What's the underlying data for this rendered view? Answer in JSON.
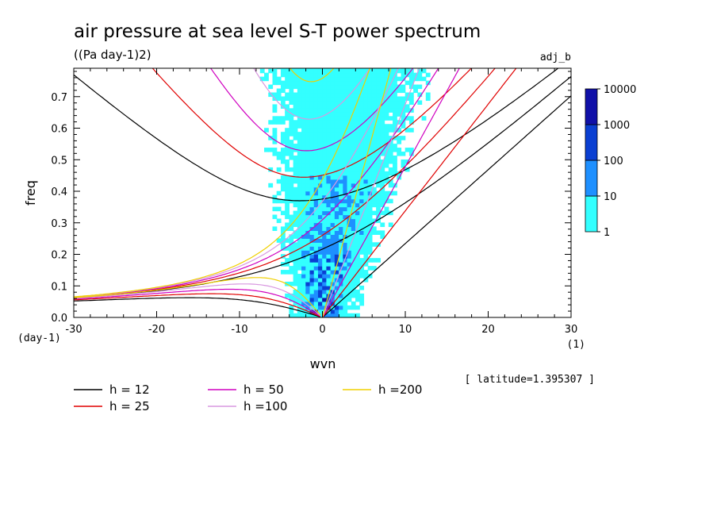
{
  "chart_data": {
    "type": "heatmap",
    "title": "air pressure at sea level S-T power spectrum",
    "subtitle": "((Pa day-1)2)",
    "tag": "adj_b",
    "xlabel": "wvn",
    "ylabel": "freq",
    "x_unit": "(1)",
    "y_unit": "(day-1)",
    "xlim": [
      -30,
      30
    ],
    "ylim": [
      0,
      0.79
    ],
    "x_ticks": [
      -30,
      -20,
      -10,
      0,
      10,
      20,
      30
    ],
    "x_tick_labels": [
      "-30",
      "-20",
      "-10",
      "0",
      "10",
      "20",
      "30"
    ],
    "y_ticks": [
      0,
      0.1,
      0.2,
      0.3,
      0.4,
      0.5,
      0.6,
      0.7
    ],
    "y_tick_labels": [
      "0.0",
      "0.1",
      "0.2",
      "0.3",
      "0.4",
      "0.5",
      "0.6",
      "0.7"
    ],
    "annotation": "[ latitude=1.395307 ]",
    "colorbar": {
      "levels": [
        1,
        10,
        100,
        1000,
        10000
      ],
      "labels": [
        "1",
        "10",
        "100",
        "1000",
        "10000"
      ],
      "colors": [
        "#33ffff",
        "#1e90ff",
        "#0a3fd2",
        "#1010a8",
        "#5a14b4"
      ]
    },
    "dispersion_curves": [
      {
        "label": "h = 12",
        "h": 12,
        "color": "#000000"
      },
      {
        "label": "h = 25",
        "h": 25,
        "color": "#e00000"
      },
      {
        "label": "h = 50",
        "h": 50,
        "color": "#d000c0"
      },
      {
        "label": "h =100",
        "h": 100,
        "color": "#d898e0"
      },
      {
        "label": "h =200",
        "h": 200,
        "color": "#f0d000"
      }
    ]
  }
}
